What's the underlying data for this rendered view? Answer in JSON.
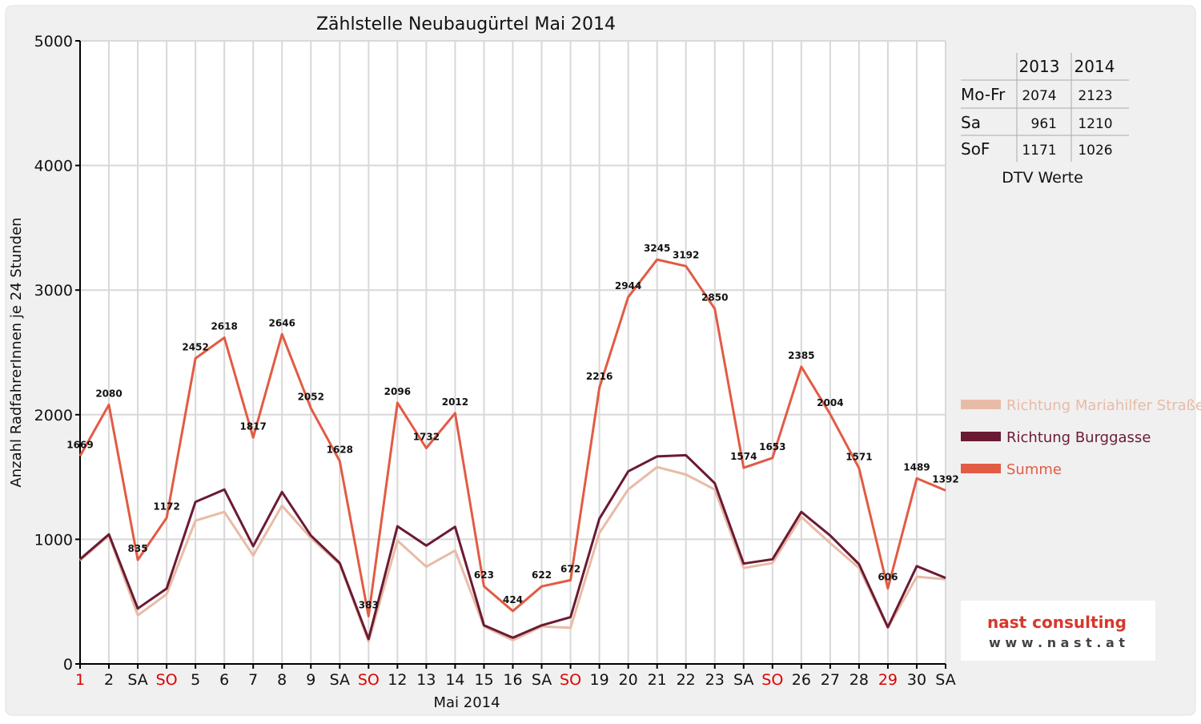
{
  "chart_data": {
    "type": "line",
    "title": "Zählstelle Neubaugürtel Mai 2014",
    "xlabel": "Mai 2014",
    "ylabel": "Anzahl RadfahrerInnen je 24 Stunden",
    "ylim": [
      0,
      5000
    ],
    "y_ticks": [
      0,
      1000,
      2000,
      3000,
      4000,
      5000
    ],
    "grid": "vertical-and-horizontal",
    "legend_placement": "right",
    "categories": [
      "1",
      "2",
      "SA",
      "SO",
      "5",
      "6",
      "7",
      "8",
      "9",
      "SA",
      "SO",
      "12",
      "13",
      "14",
      "15",
      "16",
      "SA",
      "SO",
      "19",
      "20",
      "21",
      "22",
      "23",
      "SA",
      "SO",
      "26",
      "27",
      "28",
      "29",
      "30",
      "SA"
    ],
    "red_categories": [
      0,
      3,
      10,
      17,
      24,
      28
    ],
    "series": [
      {
        "name": "Richtung Mariahilfer Straße",
        "color": "#e8bba6",
        "values": [
          830,
          1030,
          390,
          560,
          1150,
          1220,
          870,
          1270,
          1010,
          800,
          180,
          990,
          780,
          910,
          300,
          190,
          300,
          290,
          1050,
          1400,
          1580,
          1520,
          1400,
          770,
          810,
          1180,
          970,
          770,
          290,
          700,
          680
        ]
      },
      {
        "name": "Richtung Burggasse",
        "color": "#6b1a33",
        "values": [
          840,
          1040,
          445,
          605,
          1300,
          1400,
          945,
          1380,
          1030,
          810,
          200,
          1105,
          950,
          1100,
          310,
          210,
          310,
          375,
          1165,
          1545,
          1665,
          1675,
          1450,
          805,
          840,
          1220,
          1030,
          800,
          295,
          785,
          690
        ]
      },
      {
        "name": "Summe",
        "color": "#e25b44",
        "values": [
          1669,
          2080,
          835,
          1172,
          2452,
          2618,
          1817,
          2646,
          2052,
          1628,
          383,
          2096,
          1732,
          2012,
          623,
          424,
          622,
          672,
          2216,
          2944,
          3245,
          3192,
          2850,
          1574,
          1653,
          2385,
          2004,
          1571,
          606,
          1489,
          1392
        ]
      }
    ],
    "data_labels": [
      "1669",
      "2080",
      "835",
      "1172",
      "2452",
      "2618",
      "1817",
      "2646",
      "2052",
      "1628",
      "383",
      "2096",
      "1732",
      "2012",
      "623",
      "424",
      "622",
      "672",
      "2216",
      "2944",
      "3245",
      "3192",
      "2850",
      "1574",
      "1653",
      "2385",
      "2004",
      "1571",
      "606",
      "1489",
      "1392"
    ]
  },
  "dtv_table": {
    "headers": [
      "",
      "2013",
      "2014"
    ],
    "rows": [
      [
        "Mo-Fr",
        "2074",
        "2123"
      ],
      [
        "Sa",
        "961",
        "1210"
      ],
      [
        "SoF",
        "1171",
        "1026"
      ]
    ],
    "caption": "DTV Werte"
  },
  "logo": {
    "line1": "nast consulting",
    "line2": "w w w . n a s t . a t"
  },
  "colors": {
    "background": "#f0f0f0",
    "plot_background": "#ffffff",
    "grid": "#d8d8d8",
    "holiday_red": "#e00000"
  }
}
